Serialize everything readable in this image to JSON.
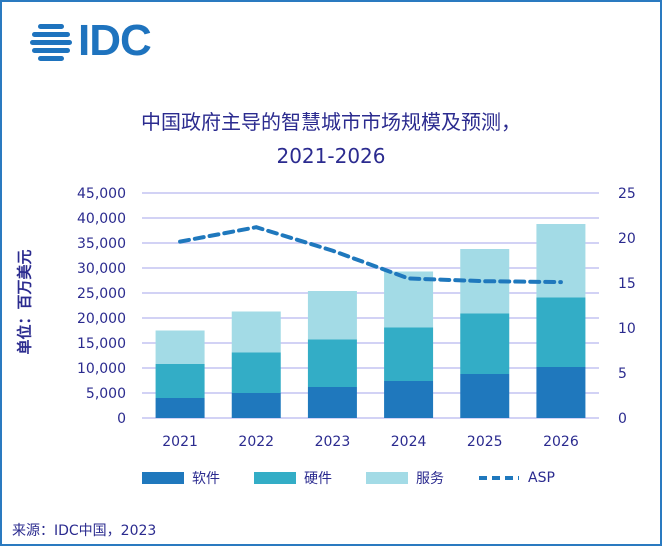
{
  "logo_text": "IDC",
  "chart_data": {
    "type": "bar",
    "stacked": true,
    "title": "中国政府主导的智慧城市市场规模及预测，",
    "subtitle": "2021-2026",
    "ylabel": "单位：百万美元",
    "categories": [
      "2021",
      "2022",
      "2023",
      "2024",
      "2025",
      "2026"
    ],
    "series": [
      {
        "name": "软件",
        "values": [
          4000,
          5000,
          6200,
          7400,
          8800,
          10200
        ],
        "color": "#1f78bd"
      },
      {
        "name": "硬件",
        "values": [
          6800,
          8100,
          9500,
          10700,
          12100,
          13900
        ],
        "color": "#33adc6"
      },
      {
        "name": "服务",
        "values": [
          6700,
          8200,
          9700,
          11200,
          12900,
          14700
        ],
        "color": "#a3dbe6"
      }
    ],
    "line_series": {
      "name": "ASP",
      "values": [
        19.6,
        21.2,
        18.6,
        15.5,
        15.2,
        15.1
      ],
      "color": "#1f78bd",
      "axis": "right",
      "style": "dashed"
    },
    "ylim": [
      0,
      45000
    ],
    "y_ticks": [
      "0",
      "5,000",
      "10,000",
      "15,000",
      "20,000",
      "25,000",
      "30,000",
      "35,000",
      "40,000",
      "45,000"
    ],
    "y2lim": [
      0,
      25
    ],
    "y2_ticks": [
      "0",
      "5",
      "10",
      "15",
      "20",
      "25"
    ],
    "grid": true,
    "legend": "bottom"
  },
  "source": "来源：IDC中国，2023"
}
